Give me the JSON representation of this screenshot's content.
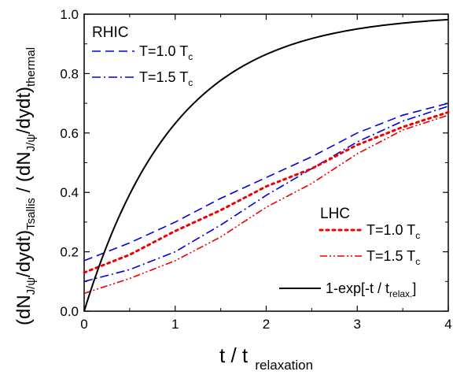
{
  "chart_data": {
    "type": "line",
    "xlim": [
      0,
      4
    ],
    "ylim": [
      0.0,
      1.0
    ],
    "x_ticks": [
      "0",
      "1",
      "2",
      "3",
      "4"
    ],
    "y_ticks": [
      "0.0",
      "0.2",
      "0.4",
      "0.6",
      "0.8",
      "1.0"
    ],
    "xlabel": {
      "main": "t / t",
      "sub": "relaxation"
    },
    "ylabel": {
      "p1": "(dN",
      "p1_sub": "J/ψ",
      "p2": "/dydt)",
      "p2_sub": "Tsallis",
      "p3": " / (dN",
      "p3_sub": "J/ψ",
      "p4": "/dydt)",
      "p4_sub": "thermal"
    },
    "groups": {
      "rhic": "RHIC",
      "lhc": "LHC"
    },
    "series": [
      {
        "legend": {
          "main": "T=1.0 T",
          "sub": "c"
        },
        "color": "#0000dd",
        "dash": "dashed",
        "group": "RHIC",
        "x": [
          0,
          0.5,
          1,
          1.5,
          2,
          2.5,
          3,
          3.5,
          4
        ],
        "y": [
          0.17,
          0.23,
          0.3,
          0.38,
          0.45,
          0.52,
          0.6,
          0.66,
          0.7
        ]
      },
      {
        "legend": {
          "main": "T=1.5 T",
          "sub": "c"
        },
        "color": "#0000dd",
        "dash": "dashdot",
        "group": "RHIC",
        "x": [
          0,
          0.5,
          1,
          1.5,
          2,
          2.5,
          3,
          3.5,
          4
        ],
        "y": [
          0.1,
          0.14,
          0.2,
          0.29,
          0.39,
          0.48,
          0.57,
          0.64,
          0.69
        ]
      },
      {
        "legend": {
          "main": "T=1.0 T",
          "sub": "c"
        },
        "color": "#ee0000",
        "dash": "dotted",
        "group": "LHC",
        "x": [
          0,
          0.5,
          1,
          1.5,
          2,
          2.5,
          3,
          3.5,
          4
        ],
        "y": [
          0.13,
          0.19,
          0.27,
          0.34,
          0.42,
          0.48,
          0.56,
          0.62,
          0.67
        ]
      },
      {
        "legend": {
          "main": "T=1.5 T",
          "sub": "c"
        },
        "color": "#ee0000",
        "dash": "dashdotdot",
        "group": "LHC",
        "x": [
          0,
          0.5,
          1,
          1.5,
          2,
          2.5,
          3,
          3.5,
          4
        ],
        "y": [
          0.06,
          0.11,
          0.17,
          0.25,
          0.35,
          0.43,
          0.53,
          0.61,
          0.66
        ]
      },
      {
        "legend": {
          "main": "1-exp[-t / t",
          "sub": "relax.",
          "tail": "]"
        },
        "color": "#000000",
        "dash": "solid",
        "group": "",
        "formula": "1-exp(-t)",
        "x": [
          0,
          0.25,
          0.5,
          1,
          1.5,
          2,
          2.5,
          3,
          3.5,
          4
        ],
        "y": [
          0,
          0.221,
          0.393,
          0.632,
          0.777,
          0.865,
          0.918,
          0.95,
          0.97,
          0.982
        ]
      }
    ]
  }
}
